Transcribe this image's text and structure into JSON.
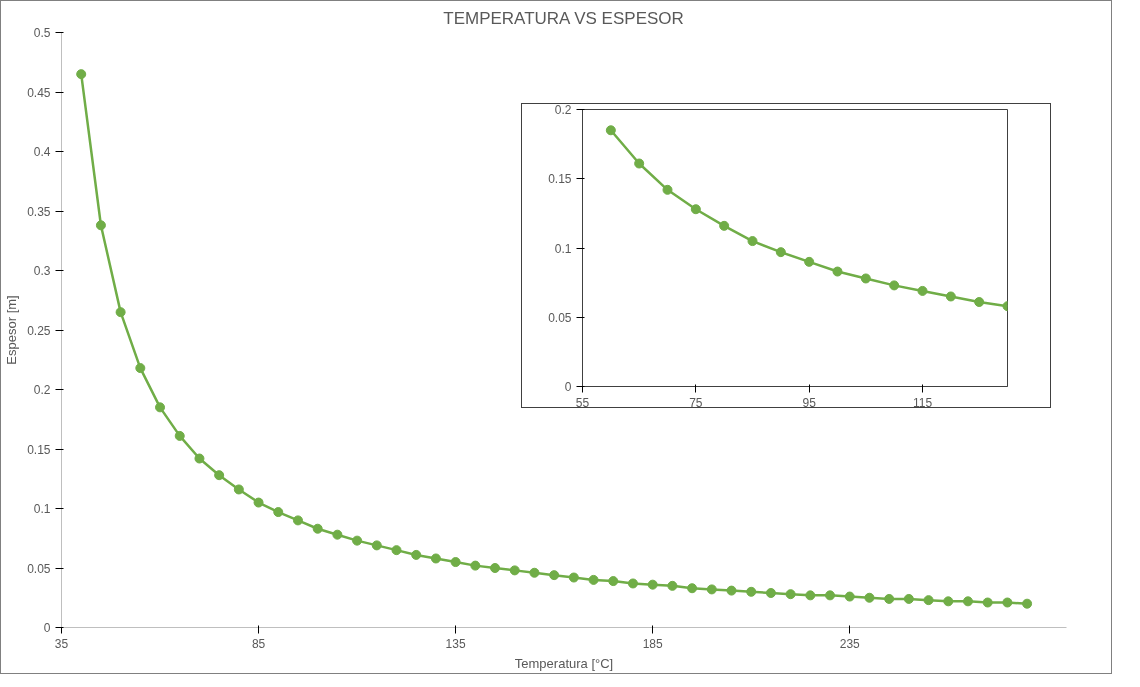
{
  "chart_data": [
    {
      "type": "line",
      "title": "TEMPERATURA VS ESPESOR",
      "xlabel": "Temperatura [°C]",
      "ylabel": "Espesor [m]",
      "x": [
        40,
        45,
        50,
        55,
        60,
        65,
        70,
        75,
        80,
        85,
        90,
        95,
        100,
        105,
        110,
        115,
        120,
        125,
        130,
        135,
        140,
        145,
        150,
        155,
        160,
        165,
        170,
        175,
        180,
        185,
        190,
        195,
        200,
        205,
        210,
        215,
        220,
        225,
        230,
        235,
        240,
        245,
        250,
        255,
        260,
        265,
        270,
        275,
        280
      ],
      "series": [
        {
          "color": "#70ad47",
          "values": [
            0.465,
            0.338,
            0.265,
            0.218,
            0.185,
            0.161,
            0.142,
            0.128,
            0.116,
            0.105,
            0.097,
            0.09,
            0.083,
            0.078,
            0.073,
            0.069,
            0.065,
            0.061,
            0.058,
            0.055,
            0.052,
            0.05,
            0.048,
            0.046,
            0.044,
            0.042,
            0.04,
            0.039,
            0.037,
            0.036,
            0.035,
            0.033,
            0.032,
            0.031,
            0.03,
            0.029,
            0.028,
            0.027,
            0.027,
            0.026,
            0.025,
            0.024,
            0.024,
            0.023,
            0.022,
            0.022,
            0.021,
            0.021,
            0.02
          ]
        }
      ],
      "xlim": [
        35,
        290
      ],
      "ylim": [
        0,
        0.5
      ],
      "xticks": [
        35,
        85,
        135,
        185,
        235
      ],
      "yticks": [
        0,
        0.05,
        0.1,
        0.15,
        0.2,
        0.25,
        0.3,
        0.35,
        0.4,
        0.45,
        0.5
      ],
      "grid": false,
      "marker": "circle",
      "line_style": "solid"
    },
    {
      "type": "line",
      "x": [
        60,
        65,
        70,
        75,
        80,
        85,
        90,
        95,
        100,
        105,
        110,
        115,
        120,
        125,
        130
      ],
      "series": [
        {
          "color": "#70ad47",
          "values": [
            0.185,
            0.161,
            0.142,
            0.128,
            0.116,
            0.105,
            0.097,
            0.09,
            0.083,
            0.078,
            0.073,
            0.069,
            0.065,
            0.061,
            0.058
          ]
        }
      ],
      "xlim": [
        55,
        130
      ],
      "ylim": [
        0,
        0.2
      ],
      "xticks": [
        55,
        75,
        95,
        115
      ],
      "yticks": [
        0,
        0.05,
        0.1,
        0.15,
        0.2
      ],
      "grid": false,
      "marker": "circle",
      "line_style": "solid"
    }
  ]
}
